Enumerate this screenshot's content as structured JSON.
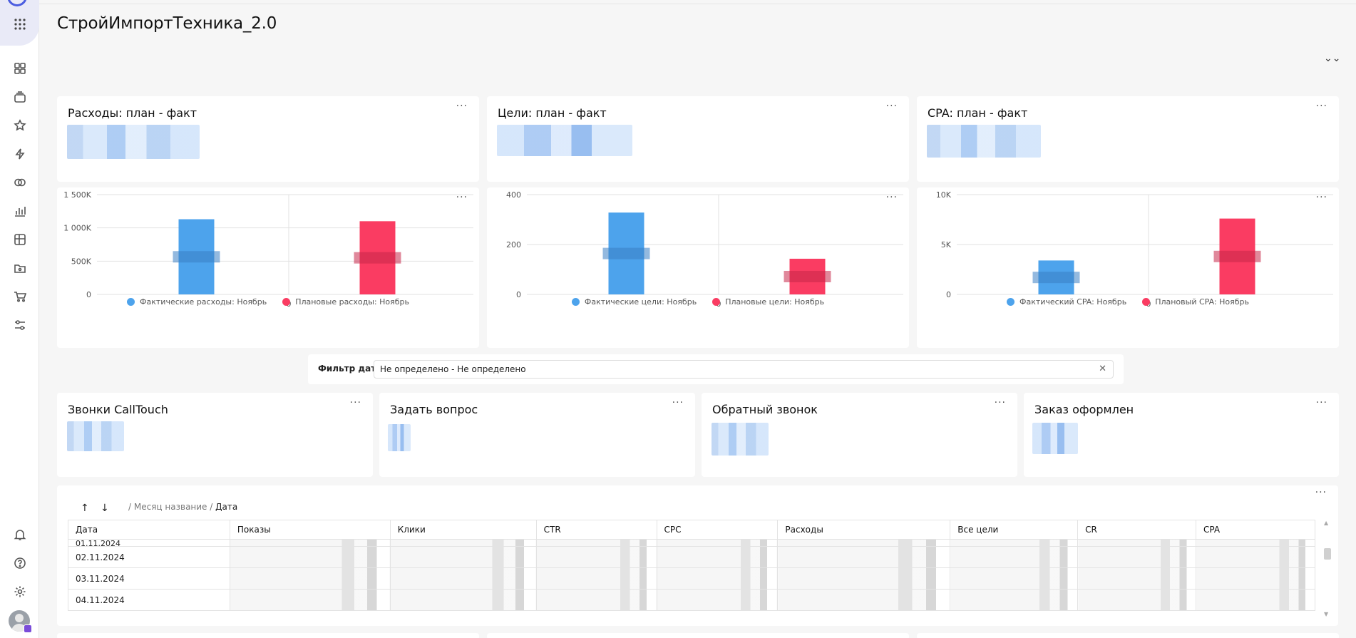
{
  "dashboard": {
    "title": "СтройИмпортТехника_2.0"
  },
  "header": {
    "collapse_icon": "double-chevron-down-icon",
    "collapse_glyph": "⌄⌄"
  },
  "sidebar": {
    "icons": [
      "apps-grid-icon",
      "dashboard-icon",
      "collections-icon",
      "star-icon",
      "lightning-icon",
      "rings-icon",
      "chart-icon",
      "table-icon",
      "folder-icon",
      "cart-icon",
      "sliders-icon",
      "bell-icon",
      "help-icon",
      "gear-icon"
    ]
  },
  "common": {
    "more_glyph": "···"
  },
  "kpi_cards": [
    {
      "title": "Расходы: план - факт"
    },
    {
      "title": "Цели: план - факт"
    },
    {
      "title": "CPA: план - факт"
    }
  ],
  "chart_data": [
    {
      "type": "bar",
      "categories": [
        "0"
      ],
      "series": [
        {
          "name": "Фактические расходы: Ноябрь",
          "values": [
            1130000
          ],
          "color": "#4da3ec"
        },
        {
          "name": "Плановые расходы: Ноябрь",
          "values": [
            1100000
          ],
          "color": "#fa3c62"
        }
      ],
      "yticks": [
        "1 500K",
        "1 000K",
        "500K",
        "0"
      ],
      "ytick_values": [
        1500000,
        1000000,
        500000,
        0
      ],
      "ylim": [
        0,
        1500000
      ],
      "xtick": "0",
      "legend_position": "bottom",
      "grid": true
    },
    {
      "type": "bar",
      "categories": [
        "0"
      ],
      "series": [
        {
          "name": "Фактические цели: Ноябрь",
          "values": [
            328
          ],
          "color": "#4da3ec"
        },
        {
          "name": "Плановые цели: Ноябрь",
          "values": [
            143
          ],
          "color": "#fa3c62"
        }
      ],
      "yticks": [
        "400",
        "200",
        "0"
      ],
      "ytick_values": [
        400,
        200,
        0
      ],
      "ylim": [
        0,
        400
      ],
      "xtick": "0",
      "legend_position": "bottom",
      "grid": true
    },
    {
      "type": "bar",
      "categories": [
        "0"
      ],
      "series": [
        {
          "name": "Фактический CPA: Ноябрь",
          "values": [
            3400
          ],
          "color": "#4da3ec"
        },
        {
          "name": "Плановый CPA: Ноябрь",
          "values": [
            7600
          ],
          "color": "#fa3c62"
        }
      ],
      "yticks": [
        "10K",
        "5K",
        "0"
      ],
      "ytick_values": [
        10000,
        5000,
        0
      ],
      "ylim": [
        0,
        10000
      ],
      "xtick": "0",
      "legend_position": "bottom",
      "grid": true
    }
  ],
  "filter": {
    "label": "Фильтр дат",
    "value": "Не определено - Не определено",
    "clear_glyph": "✕"
  },
  "goal_cards": [
    {
      "title": "Звонки CallTouch"
    },
    {
      "title": "Задать вопрос"
    },
    {
      "title": "Обратный звонок"
    },
    {
      "title": "Заказ оформлен"
    }
  ],
  "table": {
    "sort_up": "↑",
    "sort_down": "↓",
    "breadcrumb_sep1": "/",
    "breadcrumb_month": "Месяц название",
    "breadcrumb_sep2": "/",
    "breadcrumb_date": "Дата",
    "columns": [
      "Дата",
      "Показы",
      "Клики",
      "CTR",
      "CPC",
      "Расходы",
      "Все цели",
      "CR",
      "CPA"
    ],
    "rows": [
      {
        "date": "01.11.2024"
      },
      {
        "date": "02.11.2024"
      },
      {
        "date": "03.11.2024"
      },
      {
        "date": "04.11.2024"
      }
    ]
  }
}
